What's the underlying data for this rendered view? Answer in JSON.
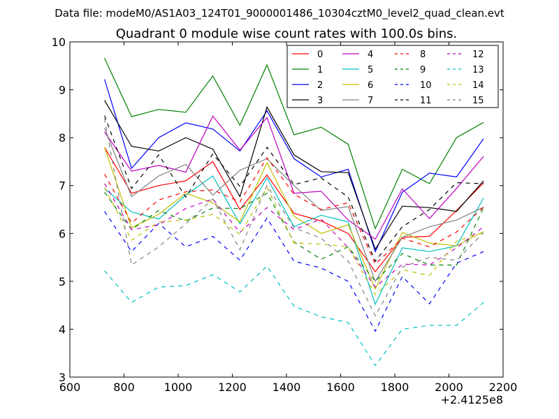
{
  "figure": {
    "suptitle": "Data file: modeM0/AS1A03_124T01_9000001486_10304cztM0_level2_quad_clean.evt",
    "x_offset_label": "+2.4125e8"
  },
  "chart_data": {
    "type": "line",
    "title": "Quadrant 0 module wise count rates with 100.0s bins.",
    "xlabel": "",
    "ylabel": "",
    "xlim": [
      600,
      2200
    ],
    "ylim": [
      3,
      10
    ],
    "x_ticks": [
      600,
      800,
      1000,
      1200,
      1400,
      1600,
      1800,
      2000,
      2200
    ],
    "x_tick_labels": [
      "600",
      "800",
      "1000",
      "1200",
      "1400",
      "1600",
      "1800",
      "2000",
      "2200"
    ],
    "y_ticks": [
      3,
      4,
      5,
      6,
      7,
      8,
      9,
      10
    ],
    "y_tick_labels": [
      "3",
      "4",
      "5",
      "6",
      "7",
      "8",
      "9",
      "10"
    ],
    "x_offset": 241250000,
    "x": [
      728,
      828,
      928,
      1028,
      1128,
      1228,
      1328,
      1428,
      1528,
      1628,
      1728,
      1828,
      1928,
      2028,
      2128
    ],
    "legend_position": "upper right",
    "legend_columns": 4,
    "grid": false,
    "series": [
      {
        "name": "0",
        "color": "#ff0000",
        "dash": "solid",
        "values": [
          7.8,
          6.84,
          7.0,
          7.1,
          7.5,
          6.5,
          7.22,
          6.42,
          6.26,
          6.0,
          5.2,
          5.92,
          5.94,
          6.48,
          7.06
        ]
      },
      {
        "name": "1",
        "color": "#008000",
        "dash": "solid",
        "values": [
          9.66,
          8.44,
          8.59,
          8.53,
          9.29,
          8.26,
          9.52,
          8.06,
          8.22,
          7.86,
          6.1,
          7.34,
          7.04,
          8.0,
          8.32
        ]
      },
      {
        "name": "2",
        "color": "#0000ff",
        "dash": "solid",
        "values": [
          9.22,
          7.36,
          8.0,
          8.31,
          8.18,
          7.72,
          8.56,
          7.56,
          7.18,
          7.34,
          5.62,
          6.86,
          7.26,
          7.18,
          7.98
        ]
      },
      {
        "name": "3",
        "color": "#000000",
        "dash": "solid",
        "values": [
          8.78,
          7.82,
          7.72,
          8.0,
          7.76,
          6.77,
          8.64,
          7.64,
          7.29,
          7.27,
          5.67,
          6.57,
          6.54,
          6.46,
          7.1
        ]
      },
      {
        "name": "4",
        "color": "#bf00bf",
        "dash": "solid",
        "values": [
          8.12,
          7.3,
          7.42,
          7.28,
          8.45,
          7.74,
          8.42,
          6.84,
          6.88,
          6.28,
          5.88,
          6.93,
          6.31,
          6.94,
          7.61
        ]
      },
      {
        "name": "5",
        "color": "#00bfbf",
        "dash": "solid",
        "values": [
          6.94,
          6.45,
          6.3,
          6.8,
          7.2,
          6.2,
          7.16,
          6.14,
          6.38,
          6.24,
          4.52,
          5.7,
          5.62,
          5.74,
          6.74
        ]
      },
      {
        "name": "6",
        "color": "#bfbf00",
        "dash": "solid",
        "values": [
          7.8,
          6.12,
          6.4,
          6.84,
          6.64,
          6.24,
          7.48,
          6.36,
          6.0,
          6.18,
          4.84,
          6.02,
          5.8,
          5.74,
          6.04
        ]
      },
      {
        "name": "7",
        "color": "#808080",
        "dash": "solid",
        "values": [
          8.2,
          6.77,
          7.2,
          7.44,
          6.8,
          7.32,
          7.56,
          7.0,
          6.48,
          6.56,
          5.0,
          5.92,
          6.14,
          6.28,
          6.55
        ]
      },
      {
        "name": "8",
        "color": "#ff0000",
        "dash": "dashed",
        "values": [
          7.24,
          6.22,
          6.7,
          6.87,
          6.91,
          6.66,
          7.58,
          6.82,
          6.5,
          6.64,
          5.36,
          5.9,
          5.72,
          6.03,
          6.55
        ]
      },
      {
        "name": "9",
        "color": "#008000",
        "dash": "dashed",
        "values": [
          6.86,
          6.08,
          6.48,
          6.26,
          6.53,
          6.52,
          6.84,
          5.82,
          5.46,
          5.72,
          5.0,
          5.58,
          5.34,
          5.34,
          6.54
        ]
      },
      {
        "name": "10",
        "color": "#0000ff",
        "dash": "dashed",
        "values": [
          6.46,
          5.62,
          6.21,
          5.72,
          5.94,
          5.44,
          6.32,
          5.42,
          5.28,
          5.0,
          3.96,
          5.1,
          4.53,
          5.38,
          5.62
        ]
      },
      {
        "name": "11",
        "color": "#000000",
        "dash": "dashed",
        "values": [
          8.46,
          6.94,
          7.64,
          6.76,
          7.66,
          6.98,
          7.8,
          7.02,
          7.16,
          6.76,
          5.42,
          6.14,
          6.5,
          7.06,
          7.04
        ]
      },
      {
        "name": "12",
        "color": "#bf00bf",
        "dash": "dashed",
        "values": [
          7.04,
          6.08,
          6.18,
          6.52,
          6.72,
          6.02,
          6.54,
          6.08,
          6.3,
          5.7,
          4.88,
          5.36,
          5.34,
          5.7,
          6.14
        ]
      },
      {
        "name": "13",
        "color": "#00bfbf",
        "dash": "dashed",
        "values": [
          5.22,
          4.56,
          4.88,
          4.91,
          5.14,
          4.78,
          5.32,
          4.48,
          4.26,
          4.14,
          3.24,
          4.0,
          4.08,
          4.08,
          4.56
        ]
      },
      {
        "name": "14",
        "color": "#bfbf00",
        "dash": "dashed",
        "values": [
          6.96,
          5.86,
          6.24,
          6.28,
          6.4,
          5.98,
          6.96,
          5.8,
          5.78,
          5.72,
          4.72,
          5.24,
          5.12,
          5.84,
          6.02
        ]
      },
      {
        "name": "15",
        "color": "#808080",
        "dash": "dashed",
        "values": [
          8.4,
          5.34,
          5.72,
          6.2,
          6.72,
          5.66,
          7.0,
          6.12,
          5.9,
          5.42,
          4.28,
          5.3,
          5.5,
          5.44,
          6.02
        ]
      }
    ]
  }
}
